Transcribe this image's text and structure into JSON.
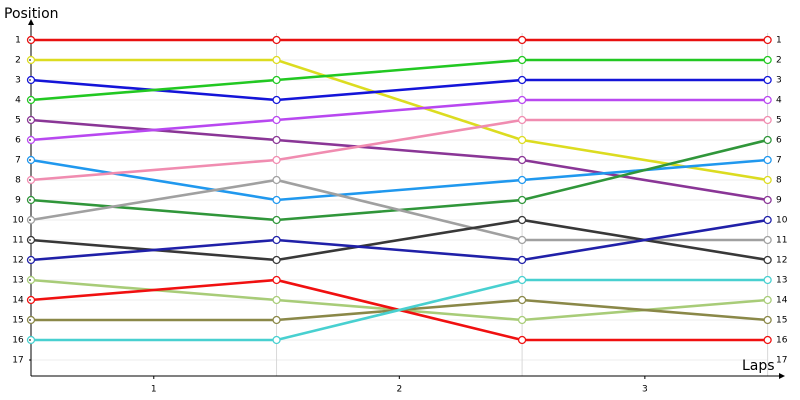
{
  "chart_data": {
    "type": "lap",
    "y_axis_title": "Position",
    "x_axis_title": "Laps",
    "x": [
      0,
      1,
      2,
      3
    ],
    "xlim": [
      0,
      3.03
    ],
    "xticks": [
      {
        "value": 0.5,
        "label": "1"
      },
      {
        "value": 1.5,
        "label": "2"
      },
      {
        "value": 2.5,
        "label": "3"
      }
    ],
    "ylim": [
      0.25,
      17.8
    ],
    "yticks": [
      1,
      2,
      3,
      4,
      5,
      6,
      7,
      8,
      9,
      10,
      11,
      12,
      13,
      14,
      15,
      16,
      17
    ],
    "grid": true,
    "series": [
      {
        "color": "#e81010",
        "values": [
          1,
          1,
          1,
          1
        ]
      },
      {
        "color": "#dcdc20",
        "values": [
          2,
          2,
          6,
          8
        ]
      },
      {
        "color": "#1414d8",
        "values": [
          3,
          4,
          3,
          3
        ]
      },
      {
        "color": "#22c822",
        "values": [
          4,
          3,
          2,
          2
        ]
      },
      {
        "color": "#8a3696",
        "values": [
          5,
          6,
          7,
          9
        ]
      },
      {
        "color": "#b848f0",
        "values": [
          6,
          5,
          4,
          4
        ]
      },
      {
        "color": "#2098ee",
        "values": [
          7,
          9,
          8,
          7
        ]
      },
      {
        "color": "#f08cb0",
        "values": [
          8,
          7,
          5,
          5
        ]
      },
      {
        "color": "#30963a",
        "values": [
          9,
          10,
          9,
          6
        ]
      },
      {
        "color": "#a0a0a0",
        "values": [
          10,
          8,
          11,
          11
        ]
      },
      {
        "color": "#383838",
        "values": [
          11,
          12,
          10,
          12
        ]
      },
      {
        "color": "#2020a8",
        "values": [
          12,
          11,
          12,
          10
        ]
      },
      {
        "color": "#a8cc78",
        "values": [
          13,
          14,
          15,
          14
        ]
      },
      {
        "color": "#f01010",
        "values": [
          14,
          13,
          16,
          16
        ]
      },
      {
        "color": "#8a8848",
        "values": [
          15,
          15,
          14,
          15
        ]
      },
      {
        "color": "#48d0d0",
        "values": [
          16,
          16,
          13,
          13
        ]
      }
    ]
  }
}
